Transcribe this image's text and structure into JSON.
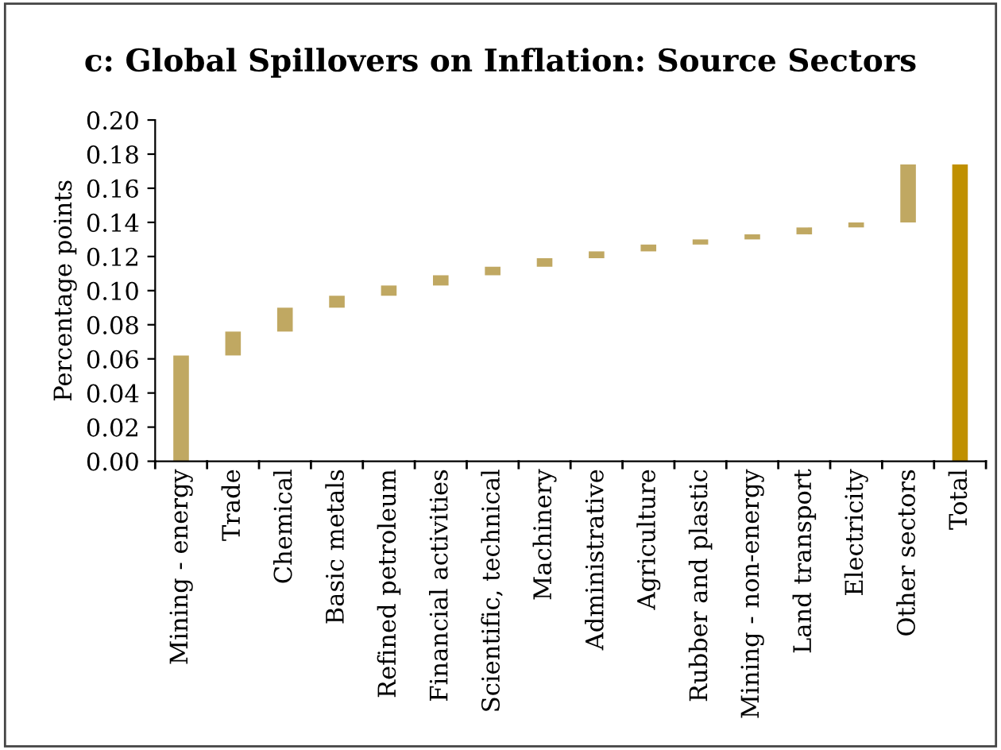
{
  "chart_data": {
    "type": "bar",
    "title": "c: Global Spillovers on Inflation: Source Sectors",
    "ylabel": "Percentage points",
    "categories": [
      "Mining - energy",
      "Trade",
      "Chemical",
      "Basic metals",
      "Refined petroleum",
      "Financial activities",
      "Scientific, technical",
      "Machinery",
      "Administrative",
      "Agriculture",
      "Rubber and plastic",
      "Mining - non-energy",
      "Land transport",
      "Electricity",
      "Other sectors",
      "Total"
    ],
    "values": [
      0.062,
      0.014,
      0.014,
      0.007,
      0.006,
      0.006,
      0.005,
      0.005,
      0.004,
      0.004,
      0.003,
      0.003,
      0.004,
      0.003,
      0.034,
      0.174
    ],
    "base": [
      0,
      0.062,
      0.076,
      0.09,
      0.097,
      0.103,
      0.109,
      0.114,
      0.119,
      0.123,
      0.127,
      0.13,
      0.133,
      0.137,
      0.14,
      0
    ],
    "colors": [
      "#c0a862",
      "#c0a862",
      "#c0a862",
      "#c0a862",
      "#c0a862",
      "#c0a862",
      "#c0a862",
      "#c0a862",
      "#c0a862",
      "#c0a862",
      "#c0a862",
      "#c0a862",
      "#c0a862",
      "#c0a862",
      "#c0a862",
      "#c09000"
    ],
    "ylim": [
      0,
      0.2
    ],
    "yticks": [
      {
        "value": 0,
        "label": "0.00"
      },
      {
        "value": 0.02,
        "label": "0.02"
      },
      {
        "value": 0.04,
        "label": "0.04"
      },
      {
        "value": 0.06,
        "label": "0.06"
      },
      {
        "value": 0.08,
        "label": "0.08"
      },
      {
        "value": 0.1,
        "label": "0.10"
      },
      {
        "value": 0.12,
        "label": "0.12"
      },
      {
        "value": 0.14,
        "label": "0.14"
      },
      {
        "value": 0.16,
        "label": "0.16"
      },
      {
        "value": 0.18,
        "label": "0.18"
      },
      {
        "value": 0.2,
        "label": "0.20"
      }
    ],
    "grid": false,
    "legend": false
  }
}
